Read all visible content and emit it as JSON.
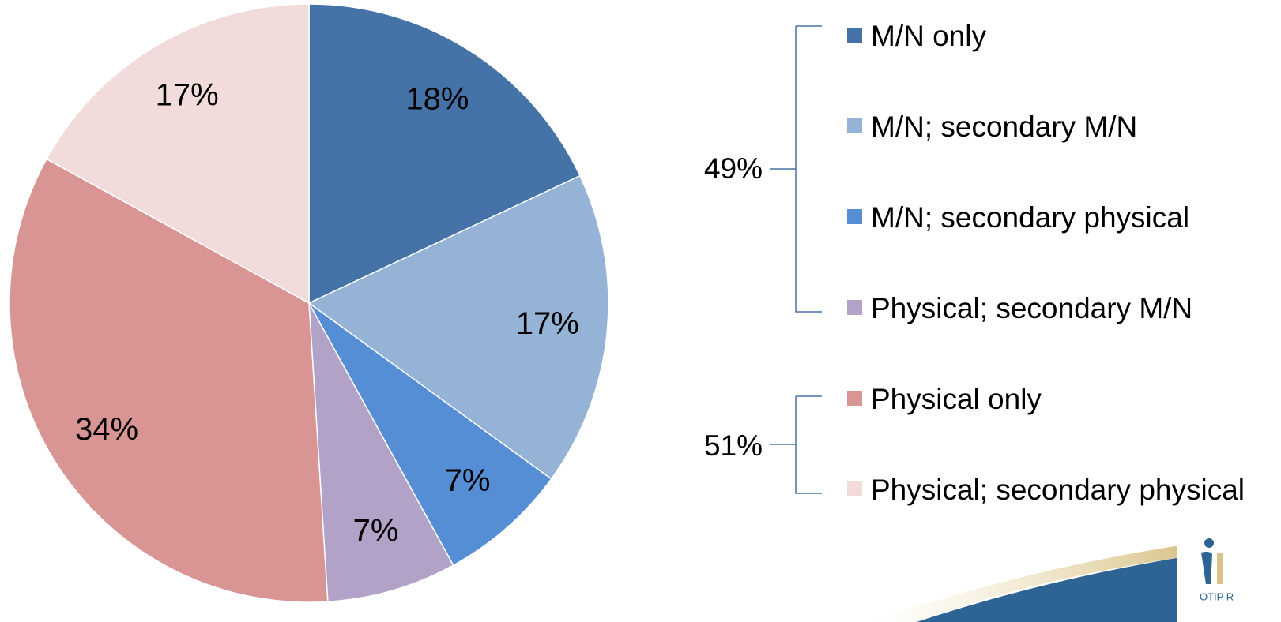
{
  "chart_data": {
    "type": "pie",
    "categories": [
      "M/N only",
      "M/N; secondary M/N",
      "M/N; secondary physical",
      "Physical; secondary M/N",
      "Physical only",
      "Physical; secondary physical"
    ],
    "values": [
      18,
      17,
      7,
      7,
      34,
      17
    ],
    "value_labels": [
      "18%",
      "17%",
      "7%",
      "7%",
      "34%",
      "17%"
    ],
    "colors": [
      "#4673a7",
      "#95b3d7",
      "#558ed5",
      "#b3a2c7",
      "#d99594",
      "#f2dcdb"
    ],
    "annotations": [
      "49%",
      "51%"
    ],
    "logo": "OTIP R"
  }
}
